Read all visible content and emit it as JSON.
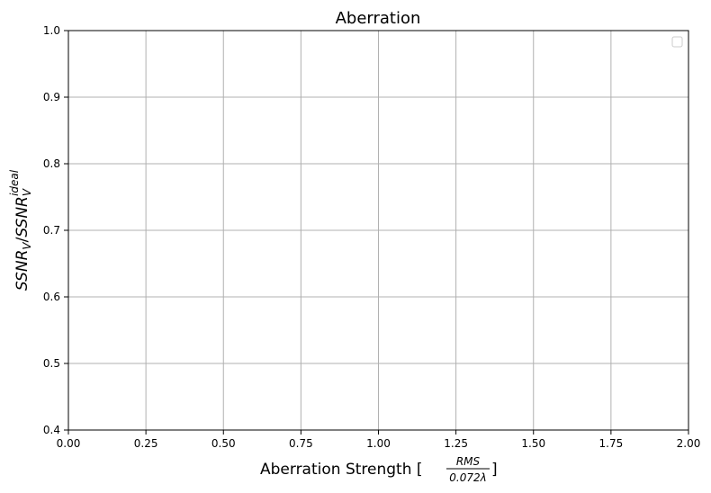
{
  "chart_data": {
    "type": "line",
    "title": "Aberration",
    "xlabel": {
      "text": "Aberration Strength [",
      "frac_numerator": "RMS",
      "frac_denominator": "0.072λ",
      "close": "]"
    },
    "ylabel": {
      "base1": "SSNR",
      "sub1": "V",
      "slash": "/",
      "base2": "SSNR",
      "sub2": "V",
      "sup2": "ideal"
    },
    "xlim": [
      0.0,
      2.0
    ],
    "ylim": [
      0.4,
      1.0
    ],
    "x_ticks": [
      "0.00",
      "0.25",
      "0.50",
      "0.75",
      "1.00",
      "1.25",
      "1.50",
      "1.75",
      "2.00"
    ],
    "y_ticks": [
      "0.4",
      "0.5",
      "0.6",
      "0.7",
      "0.8",
      "0.9",
      "1.0"
    ],
    "grid": true,
    "legend": {
      "position": "top-right",
      "entries": []
    },
    "series": []
  },
  "colors": {
    "grid": "#b0b0b0",
    "axes": "#000000",
    "background": "#ffffff"
  }
}
